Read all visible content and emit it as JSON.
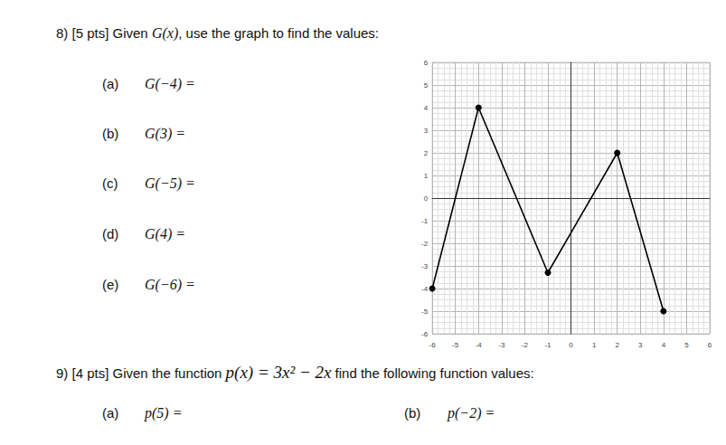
{
  "questions": [
    {
      "heading": [
        {
          "text": "8) [5 pts] Given "
        },
        {
          "text": "G(x)",
          "math": true
        },
        {
          "text": ", use the graph to find the values:"
        }
      ],
      "items": [
        {
          "label": "(a)",
          "expr": "G(−4) ="
        },
        {
          "label": "(b)",
          "expr": "G(3) ="
        },
        {
          "label": "(c)",
          "expr": "G(−5) ="
        },
        {
          "label": "(d)",
          "expr": "G(4) ="
        },
        {
          "label": "(e)",
          "expr": "G(−6) ="
        }
      ]
    },
    {
      "heading": [
        {
          "text": "9) [4 pts] Given the function "
        },
        {
          "text": "p(x) = 3x² − 2x",
          "math": true
        },
        {
          "text": "  find the following function values:"
        }
      ],
      "items": [
        {
          "label": "(a)",
          "expr": "p(5) ="
        },
        {
          "label": "(b)",
          "expr": "p(−2) ="
        }
      ]
    }
  ],
  "chart_data": {
    "type": "line",
    "x": [
      -6,
      -4,
      -1,
      2,
      4
    ],
    "values": [
      -4,
      4,
      -3.3,
      2,
      -5
    ],
    "color": "#000000",
    "marker": "circle",
    "xlim": [
      -6,
      6
    ],
    "ylim": [
      -6,
      6
    ],
    "xticks": [
      -6,
      -5,
      -4,
      -3,
      -2,
      -1,
      0,
      1,
      2,
      3,
      4,
      5,
      6
    ],
    "yticks": [
      -6,
      -5,
      -4,
      -3,
      -2,
      -1,
      0,
      1,
      2,
      3,
      4,
      5,
      6
    ],
    "grid": true
  }
}
